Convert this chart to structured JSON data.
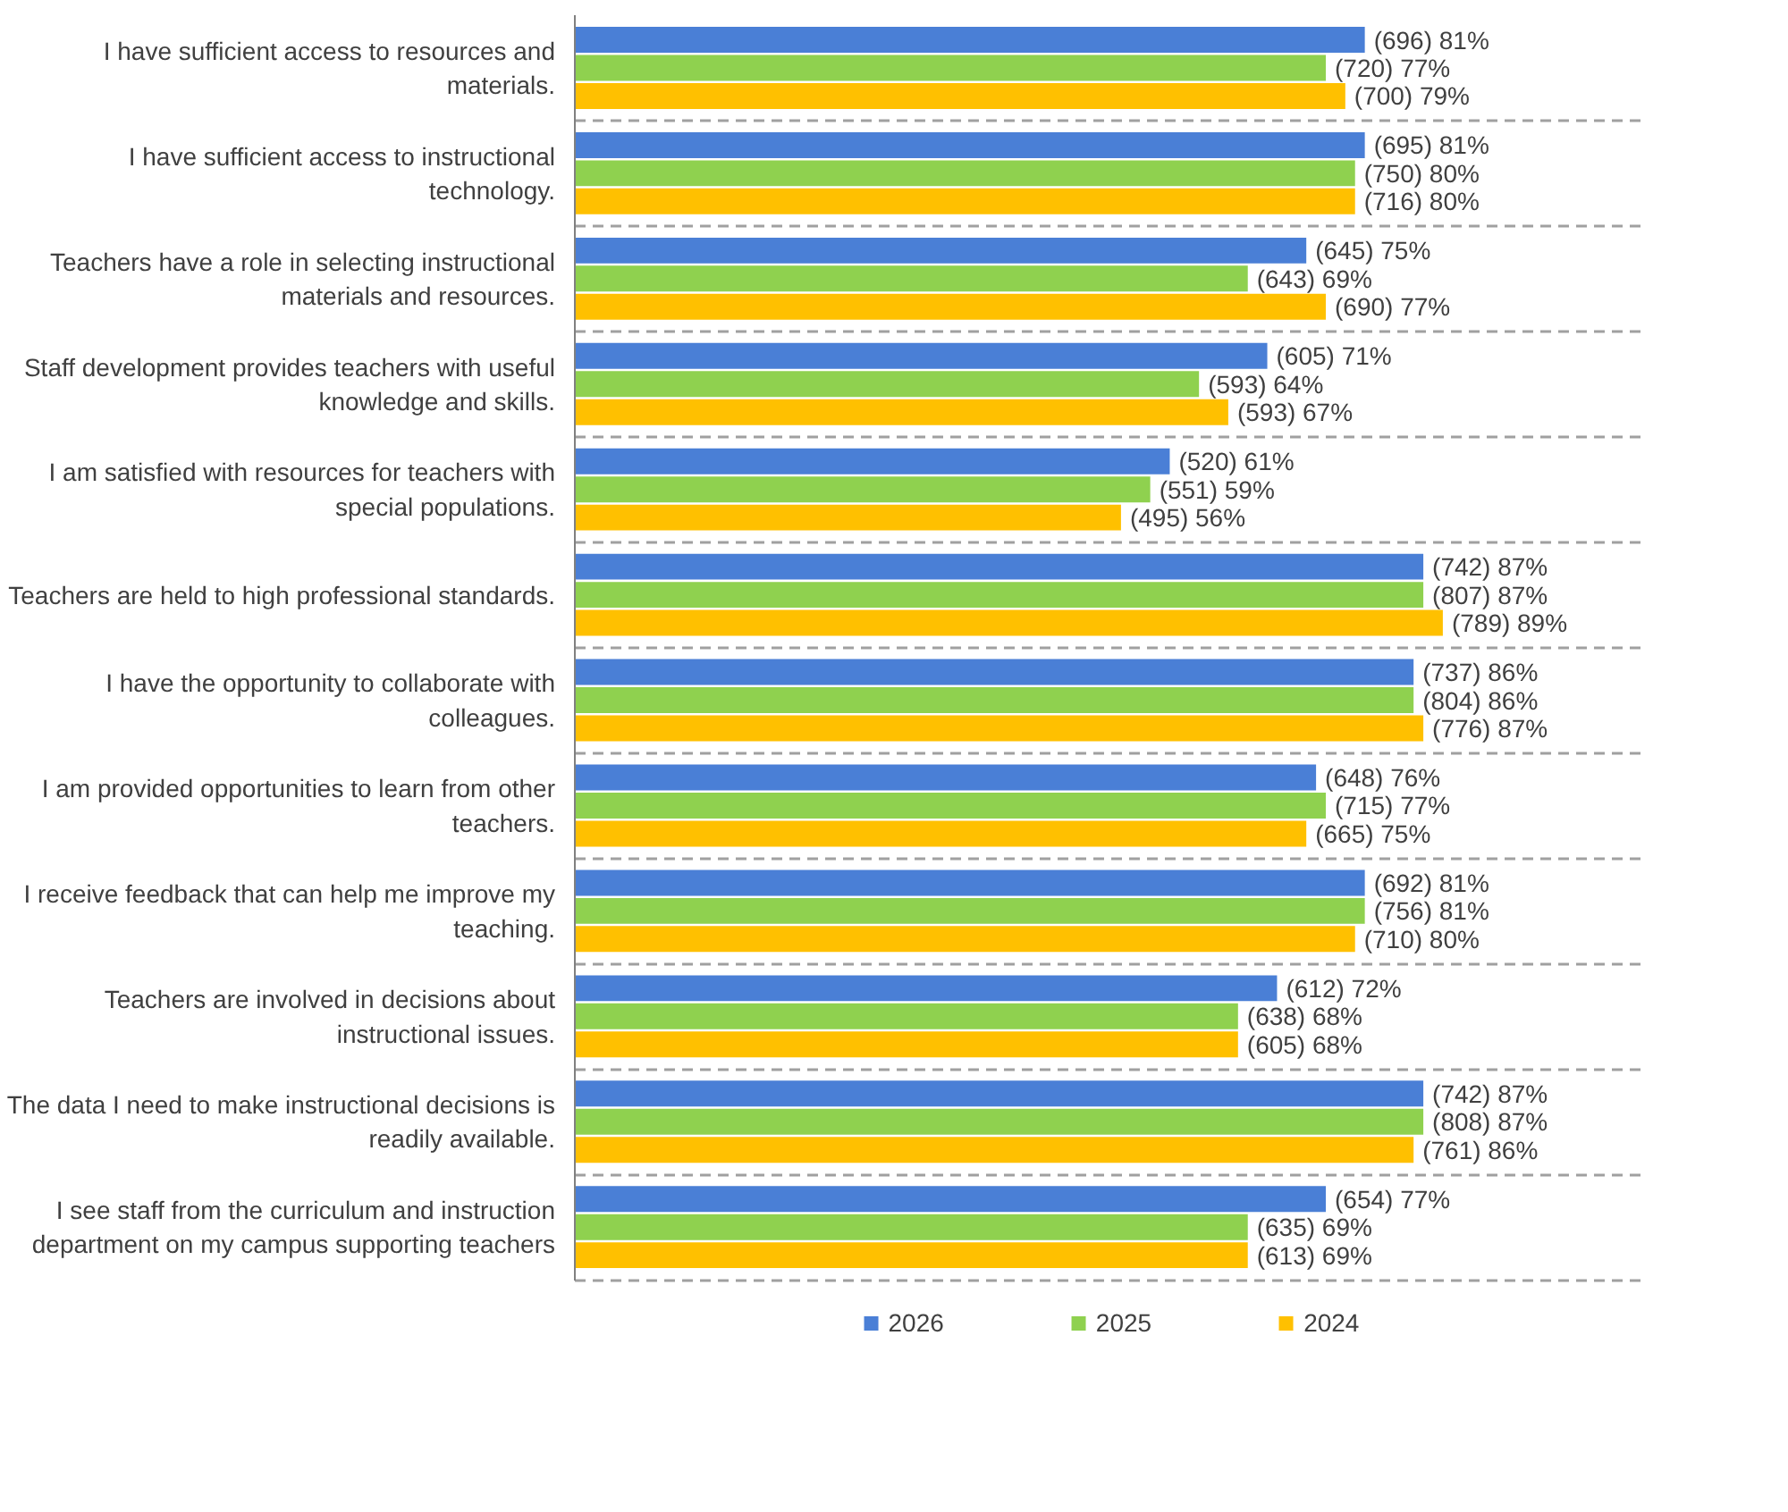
{
  "chart_data": {
    "type": "bar",
    "orientation": "horizontal",
    "categories": [
      "I have sufficient access to resources and materials.",
      "I have sufficient access to instructional technology.",
      "Teachers have a role in selecting instructional materials and resources.",
      "Staff development provides teachers with useful knowledge and skills.",
      "I am satisfied with resources for teachers with special populations.",
      "Teachers are held to high professional standards.",
      "I have the opportunity to collaborate with colleagues.",
      "I am provided opportunities to learn from other teachers.",
      "I receive feedback that can help me improve my teaching.",
      "Teachers are involved in decisions about instructional issues.",
      "The data I need to make instructional decisions is readily available.",
      "I see staff from the curriculum and instruction department on my campus supporting teachers"
    ],
    "series": [
      {
        "name": "2026",
        "color": "#4a7fd6",
        "values": [
          81,
          81,
          75,
          71,
          61,
          87,
          86,
          76,
          81,
          72,
          87,
          77
        ],
        "value_labels": [
          "(696) 81%",
          "(695) 81%",
          "(645) 75%",
          "(605) 71%",
          "(520) 61%",
          "(742) 87%",
          "(737) 86%",
          "(648) 76%",
          "(692) 81%",
          "(612) 72%",
          "(742) 87%",
          "(654) 77%"
        ]
      },
      {
        "name": "2025",
        "color": "#8fd14f",
        "values": [
          77,
          80,
          69,
          64,
          59,
          87,
          86,
          77,
          81,
          68,
          87,
          69
        ],
        "value_labels": [
          "(720) 77%",
          "(750) 80%",
          "(643) 69%",
          "(593) 64%",
          "(551) 59%",
          "(807) 87%",
          "(804) 86%",
          "(715) 77%",
          "(756) 81%",
          "(638) 68%",
          "(808) 87%",
          "(635) 69%"
        ]
      },
      {
        "name": "2024",
        "color": "#ffc000",
        "values": [
          79,
          80,
          77,
          67,
          56,
          89,
          87,
          75,
          80,
          68,
          86,
          69
        ],
        "value_labels": [
          "(700) 79%",
          "(716) 80%",
          "(690) 77%",
          "(593) 67%",
          "(495) 56%",
          "(789) 89%",
          "(776) 87%",
          "(665) 75%",
          "(710) 80%",
          "(605) 68%",
          "(761) 86%",
          "(613) 69%"
        ]
      }
    ],
    "xlim": [
      0,
      110
    ],
    "grid": "y",
    "legend": "bottom"
  }
}
